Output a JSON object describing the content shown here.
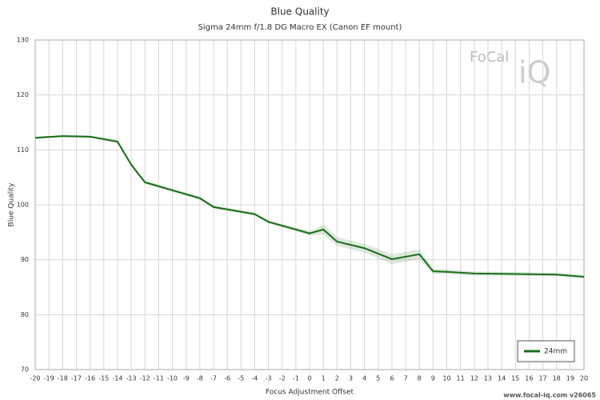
{
  "chart_data": {
    "type": "line",
    "title": "Blue Quality",
    "subtitle": "Sigma 24mm f/1.8 DG Macro EX (Canon EF mount)",
    "x_label": "Focus Adjustment Offset",
    "y_label": "Blue Quality",
    "logo_text": "FoCal",
    "logo_mark": "iQ",
    "footer": "www.focal-iq.com  v26065",
    "x": [
      -20,
      -18,
      -16,
      -14,
      -13,
      -12,
      -8,
      -7,
      -4,
      -3,
      0,
      1,
      2,
      4,
      6,
      8,
      9,
      10,
      12,
      18,
      20
    ],
    "series": [
      {
        "name": "24mm",
        "color": "#1a6e1a",
        "values": [
          112.2,
          112.5,
          112.4,
          111.5,
          107.3,
          104.1,
          101.2,
          99.6,
          98.3,
          96.9,
          94.8,
          95.5,
          93.3,
          92.1,
          90.1,
          91.0,
          87.9,
          87.8,
          87.5,
          87.3,
          86.9
        ],
        "errors": [
          0.2,
          0.2,
          0.2,
          0.3,
          0.3,
          0.3,
          0.3,
          0.3,
          0.3,
          0.3,
          0.4,
          0.9,
          0.8,
          0.8,
          0.9,
          0.9,
          0.5,
          0.4,
          0.4,
          0.3,
          0.3
        ]
      }
    ],
    "xlim": [
      -20,
      20
    ],
    "xticks": [
      -20,
      -19,
      -18,
      -17,
      -16,
      -15,
      -14,
      -13,
      -12,
      -11,
      -10,
      -9,
      -8,
      -7,
      -6,
      -5,
      -4,
      -3,
      -2,
      -1,
      0,
      1,
      2,
      3,
      4,
      5,
      6,
      7,
      8,
      9,
      10,
      11,
      12,
      13,
      14,
      15,
      16,
      17,
      18,
      19,
      20
    ],
    "ylim": [
      70,
      130
    ],
    "yticks": [
      70,
      80,
      90,
      100,
      110,
      120,
      130
    ],
    "grid": true,
    "legend": "bottom-right"
  }
}
